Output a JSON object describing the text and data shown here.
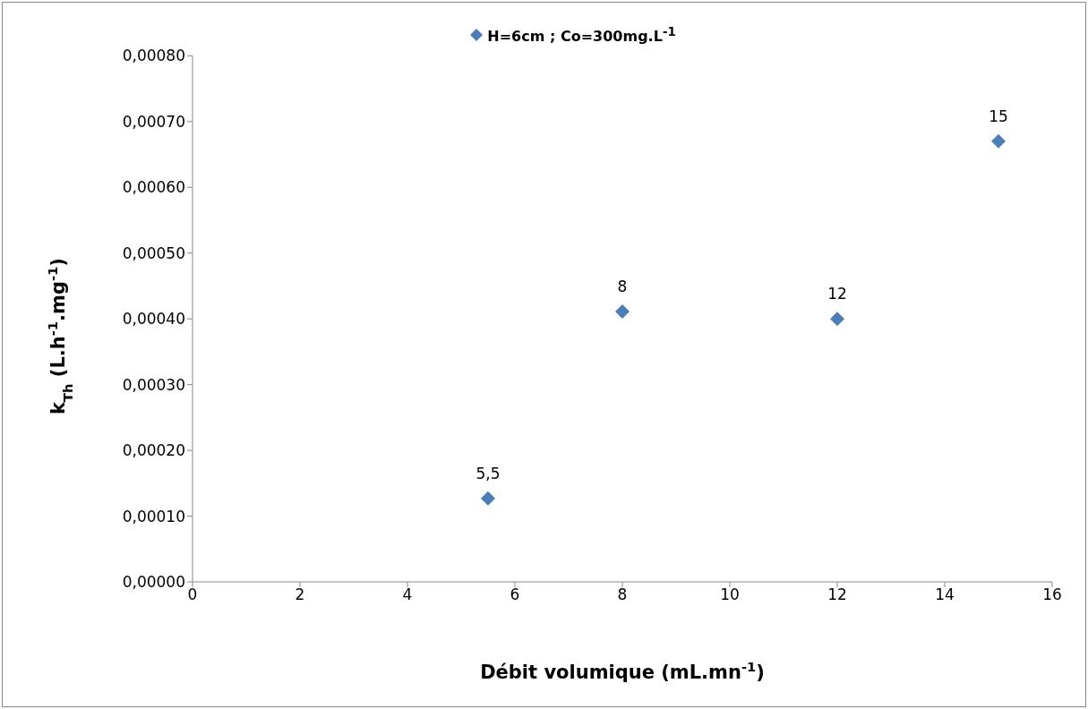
{
  "chart_data": {
    "type": "scatter",
    "xlabel": "Débit volumique (mL.mn$^{-1}$)",
    "ylabel": "k$_{Th}$ (L.h$^{-1}$.mg$^{-1}$)",
    "x": [
      5.5,
      8,
      12,
      15
    ],
    "series": [
      {
        "name": "H=6cm ; Co=300mg.L$^{-1}$",
        "color": "#4a7ebb",
        "values": [
          0.000127,
          0.000411,
          0.0004,
          0.00067
        ]
      }
    ],
    "annotations": [
      {
        "text": "5,5",
        "x": 5.5,
        "y": 0.000127
      },
      {
        "text": "8",
        "x": 8,
        "y": 0.000411
      },
      {
        "text": "12",
        "x": 12,
        "y": 0.0004
      },
      {
        "text": "15",
        "x": 15,
        "y": 0.00067
      }
    ],
    "xlim": [
      0,
      16
    ],
    "xticks": [
      0,
      2,
      4,
      6,
      8,
      10,
      12,
      14,
      16
    ],
    "ylim": [
      0,
      0.0008
    ],
    "yticks": [
      {
        "value": 0,
        "label": "0,00000"
      },
      {
        "value": 0.0001,
        "label": "0,00010"
      },
      {
        "value": 0.0002,
        "label": "0,00020"
      },
      {
        "value": 0.0003,
        "label": "0,00030"
      },
      {
        "value": 0.0004,
        "label": "0,00040"
      },
      {
        "value": 0.0005,
        "label": "0,00050"
      },
      {
        "value": 0.0006,
        "label": "0,00060"
      },
      {
        "value": 0.0007,
        "label": "0,00070"
      },
      {
        "value": 0.0008,
        "label": "0,00080"
      }
    ],
    "marker": "diamond",
    "legend": "top",
    "grid": false
  }
}
